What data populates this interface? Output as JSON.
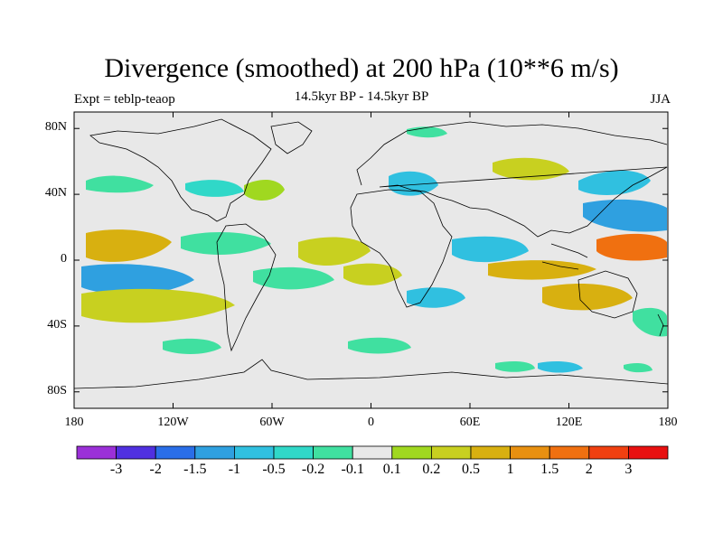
{
  "title": "Divergence (smoothed) at 200 hPa (10**6 m/s)",
  "left_label": "Expt = teblp-teaop",
  "center_label": "14.5kyr BP - 14.5kyr BP",
  "right_label": "JJA",
  "map": {
    "projection": "cylindrical-equidistant",
    "lon_range": [
      -180,
      180
    ],
    "lat_range": [
      -90,
      90
    ],
    "background_color": "#e8e8e8",
    "coastline_color": "#000000"
  },
  "lat_ticks": [
    {
      "value": 80,
      "label": "80N"
    },
    {
      "value": 40,
      "label": "40N"
    },
    {
      "value": 0,
      "label": "0"
    },
    {
      "value": -40,
      "label": "40S"
    },
    {
      "value": -80,
      "label": "80S"
    }
  ],
  "lon_ticks": [
    {
      "value": -180,
      "label": "180"
    },
    {
      "value": -120,
      "label": "120W"
    },
    {
      "value": -60,
      "label": "60W"
    },
    {
      "value": 0,
      "label": "0"
    },
    {
      "value": 60,
      "label": "60E"
    },
    {
      "value": 120,
      "label": "120E"
    },
    {
      "value": 180,
      "label": "180"
    }
  ],
  "colorbar": {
    "colors": [
      "#9b30d8",
      "#5030e0",
      "#2a6ee8",
      "#2fa0e0",
      "#30c0e0",
      "#30d8c8",
      "#40e0a0",
      "#e8e8e8",
      "#a0d820",
      "#c8d020",
      "#d8b010",
      "#e89010",
      "#f07010",
      "#f04010",
      "#e81010"
    ],
    "labels": [
      "-3",
      "-2",
      "-1.5",
      "-1",
      "-0.5",
      "-0.2",
      "-0.1",
      "0.1",
      "0.2",
      "0.5",
      "1",
      "1.5",
      "2",
      "3"
    ]
  }
}
